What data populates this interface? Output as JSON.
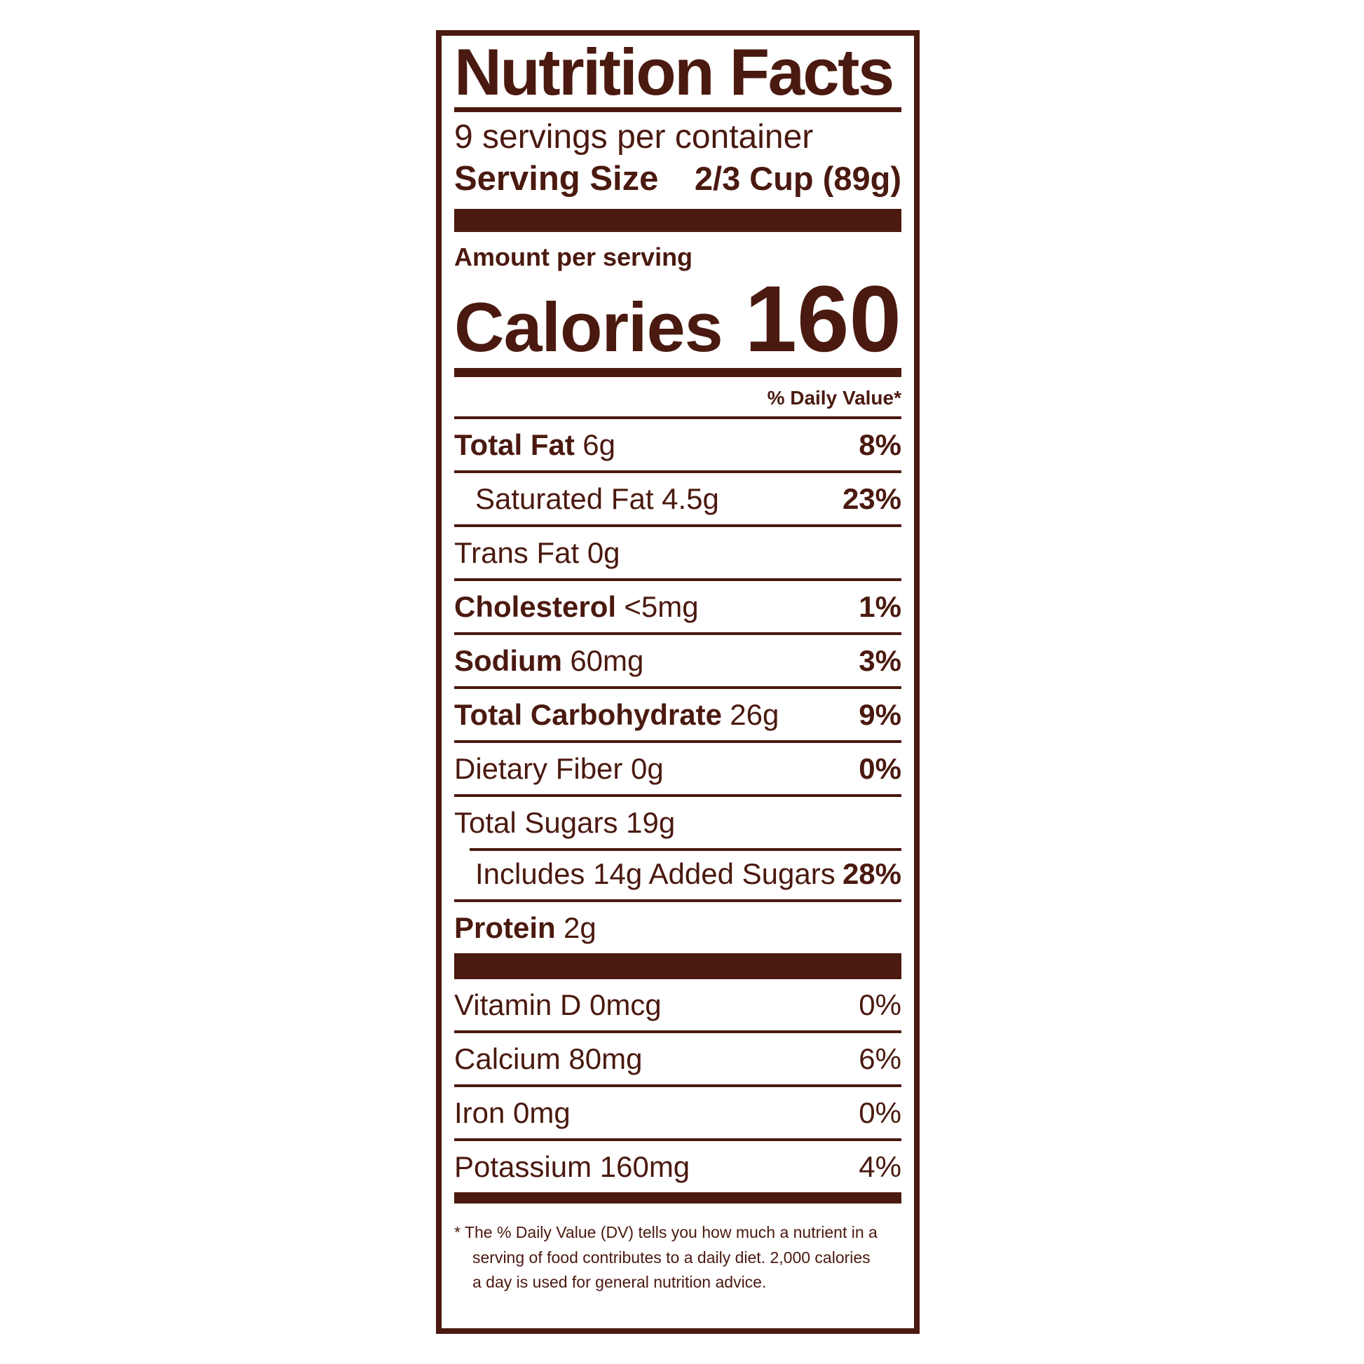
{
  "label": {
    "title": "Nutrition Facts",
    "servings_per_container": "9 servings per container",
    "serving_size_label": "Serving Size",
    "serving_size_value": "2/3 Cup (89g)",
    "amount_per_serving": "Amount per serving",
    "calories_label": "Calories",
    "calories_value": "160",
    "daily_value_header": "% Daily Value*",
    "nutrients": [
      {
        "name": "Total Fat",
        "amount": "6g",
        "dv": "8%"
      },
      {
        "name": "",
        "amount": "Saturated Fat 4.5g",
        "dv": "23%"
      },
      {
        "name": "",
        "amount": "Trans Fat 0g",
        "dv": ""
      },
      {
        "name": "Cholesterol",
        "amount": "<5mg",
        "dv": "1%"
      },
      {
        "name": "Sodium",
        "amount": "60mg",
        "dv": "3%"
      },
      {
        "name": "Total Carbohydrate",
        "amount": "26g",
        "dv": "9%"
      },
      {
        "name": "",
        "amount": "Dietary Fiber 0g",
        "dv": "0%"
      },
      {
        "name": "",
        "amount": "Total Sugars 19g",
        "dv": ""
      },
      {
        "name": "",
        "amount": "Includes 14g Added Sugars",
        "dv": "28%"
      },
      {
        "name": "Protein",
        "amount": "2g",
        "dv": ""
      }
    ],
    "vitamins": [
      {
        "name": "Vitamin D 0mcg",
        "dv": "0%"
      },
      {
        "name": "Calcium 80mg",
        "dv": "6%"
      },
      {
        "name": "Iron 0mg",
        "dv": "0%"
      },
      {
        "name": "Potassium 160mg",
        "dv": "4%"
      }
    ],
    "footnote_lines": [
      "* The % Daily Value (DV) tells you how much a nutrient in a",
      "serving of food contributes to a daily diet. 2,000 calories",
      "a day is used for general nutrition advice."
    ]
  },
  "colors": {
    "ink": "#4a190f",
    "background": "#ffffff"
  }
}
